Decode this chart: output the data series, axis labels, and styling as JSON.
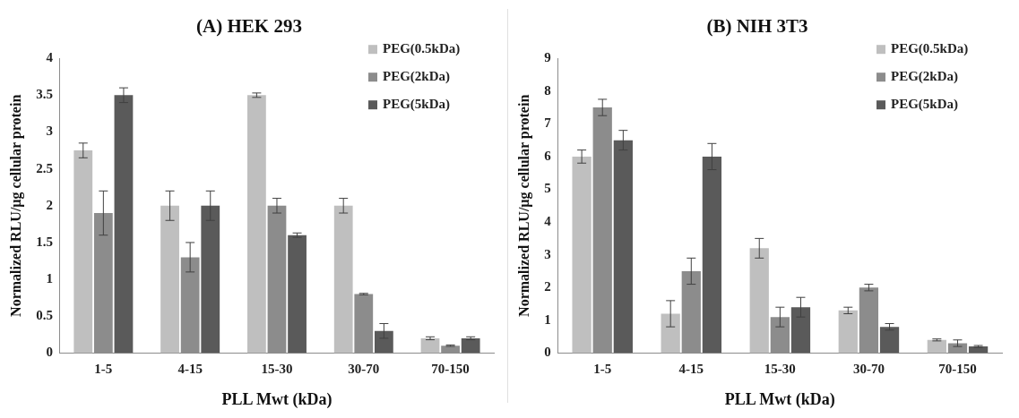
{
  "chart_data": [
    {
      "type": "bar",
      "title": "(A) HEK 293",
      "xlabel": "PLL Mwt (kDa)",
      "ylabel": "Normalized RLU/µg cellular protein",
      "categories": [
        "1-5",
        "4-15",
        "15-30",
        "30-70",
        "70-150"
      ],
      "series": [
        {
          "name": "PEG(0.5kDa)",
          "color": "#bfbfbf",
          "values": [
            2.75,
            2.0,
            3.5,
            2.0,
            0.2
          ],
          "errors": [
            0.1,
            0.2,
            0.03,
            0.1,
            0.02
          ]
        },
        {
          "name": "PEG(2kDa)",
          "color": "#8c8c8c",
          "values": [
            1.9,
            1.3,
            2.0,
            0.8,
            0.1
          ],
          "errors": [
            0.3,
            0.2,
            0.1,
            0.01,
            0.01
          ]
        },
        {
          "name": "PEG(5kDa)",
          "color": "#5a5a5a",
          "values": [
            3.5,
            2.0,
            1.6,
            0.3,
            0.2
          ],
          "errors": [
            0.1,
            0.2,
            0.03,
            0.1,
            0.02
          ]
        }
      ],
      "ylim": [
        0,
        4
      ],
      "yticks": [
        0,
        0.5,
        1,
        1.5,
        2,
        2.5,
        3,
        3.5,
        4
      ],
      "grid": false,
      "legend": "top right"
    },
    {
      "type": "bar",
      "title": "(B) NIH 3T3",
      "xlabel": "PLL Mwt (kDa)",
      "ylabel": "Normalized RLU/µg cellular protein",
      "categories": [
        "1-5",
        "4-15",
        "15-30",
        "30-70",
        "70-150"
      ],
      "series": [
        {
          "name": "PEG(0.5kDa)",
          "color": "#bfbfbf",
          "values": [
            6.0,
            1.2,
            3.2,
            1.3,
            0.4
          ],
          "errors": [
            0.2,
            0.4,
            0.3,
            0.1,
            0.03
          ]
        },
        {
          "name": "PEG(2kDa)",
          "color": "#8c8c8c",
          "values": [
            7.5,
            2.5,
            1.1,
            2.0,
            0.3
          ],
          "errors": [
            0.25,
            0.4,
            0.3,
            0.1,
            0.1
          ]
        },
        {
          "name": "PEG(5kDa)",
          "color": "#5a5a5a",
          "values": [
            6.5,
            6.0,
            1.4,
            0.8,
            0.2
          ],
          "errors": [
            0.3,
            0.4,
            0.3,
            0.1,
            0.03
          ]
        }
      ],
      "ylim": [
        0,
        9
      ],
      "yticks": [
        0,
        1,
        2,
        3,
        4,
        5,
        6,
        7,
        8,
        9
      ],
      "grid": false,
      "legend": "top right"
    }
  ]
}
